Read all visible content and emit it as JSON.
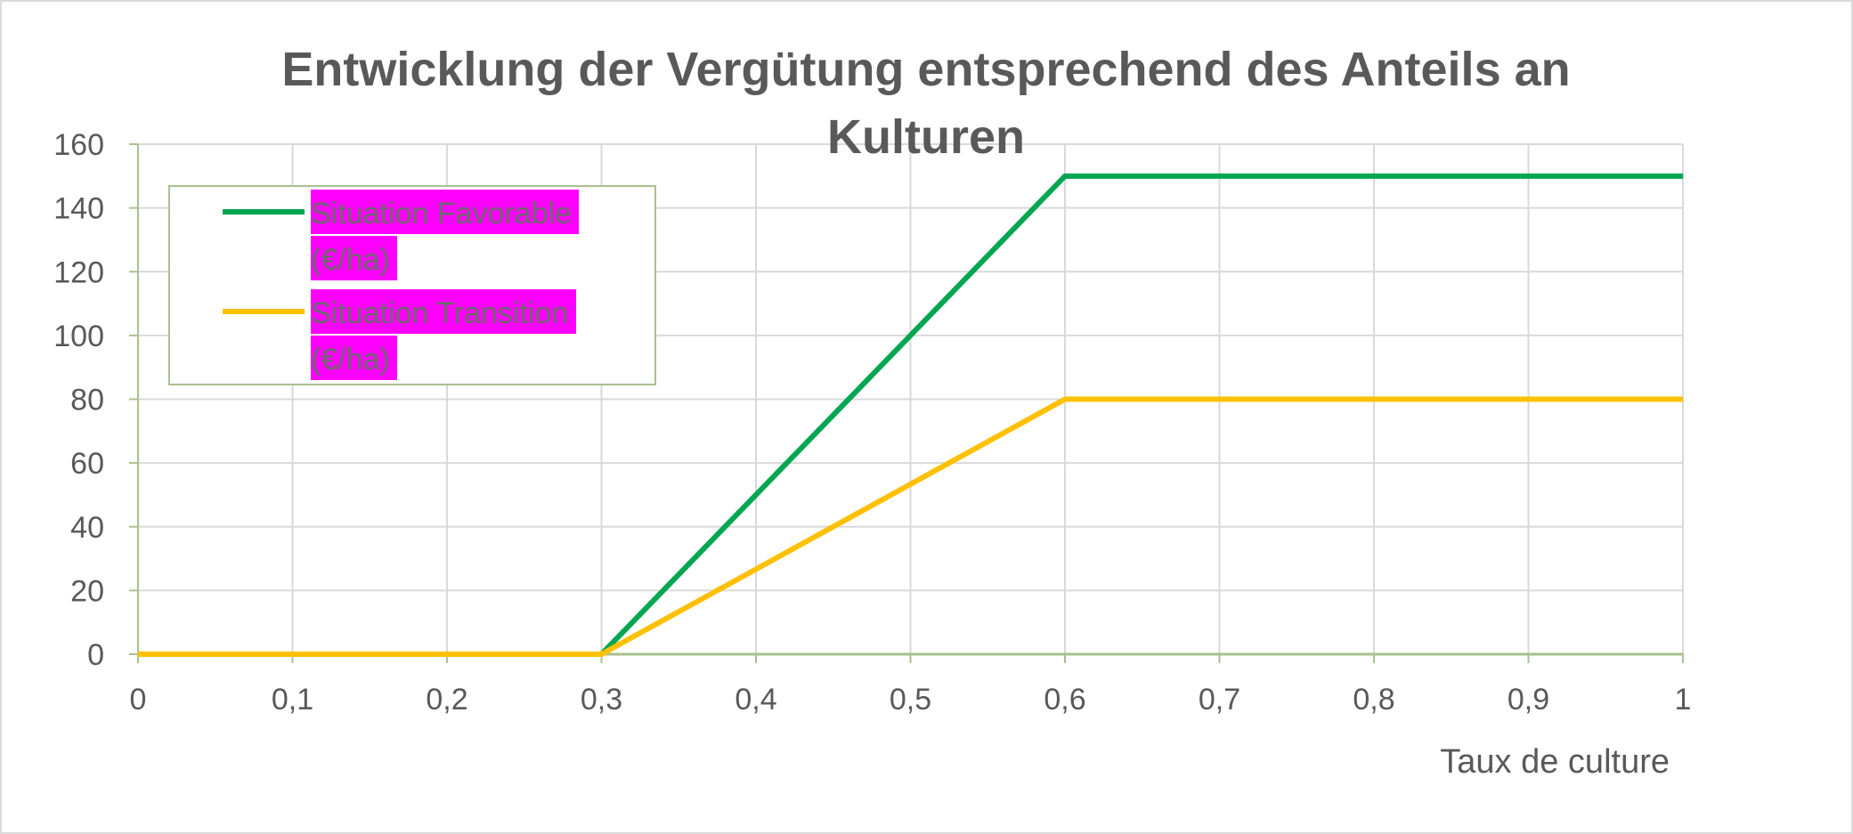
{
  "chart_data": {
    "type": "line",
    "title_lines": [
      "Entwicklung der Vergütung entsprechend des Anteils an",
      "Kulturen"
    ],
    "xlabel": "Taux de culture",
    "ylabel": "",
    "xlim": [
      0,
      1
    ],
    "ylim": [
      0,
      160
    ],
    "x_ticks": [
      "0",
      "0,1",
      "0,2",
      "0,3",
      "0,4",
      "0,5",
      "0,6",
      "0,7",
      "0,8",
      "0,9",
      "1"
    ],
    "y_ticks": [
      "0",
      "20",
      "40",
      "60",
      "80",
      "100",
      "120",
      "140",
      "160"
    ],
    "grid": true,
    "legend_position": "top-left",
    "series": [
      {
        "name_lines": [
          "Situation Favorable",
          "(€/ha)"
        ],
        "color": "#00a651",
        "x": [
          0,
          0.3,
          0.6,
          1
        ],
        "y": [
          0,
          0,
          150,
          150
        ]
      },
      {
        "name_lines": [
          "Situation Transition",
          "(€/ha)"
        ],
        "color": "#ffc000",
        "x": [
          0,
          0.3,
          0.6,
          1
        ],
        "y": [
          0,
          0,
          80,
          80
        ]
      }
    ],
    "colors": {
      "grid": "#d9d9d9",
      "axis": "#a9c08e",
      "legend_border": "#a9c08e",
      "legend_highlight": "#ff00ff"
    }
  }
}
